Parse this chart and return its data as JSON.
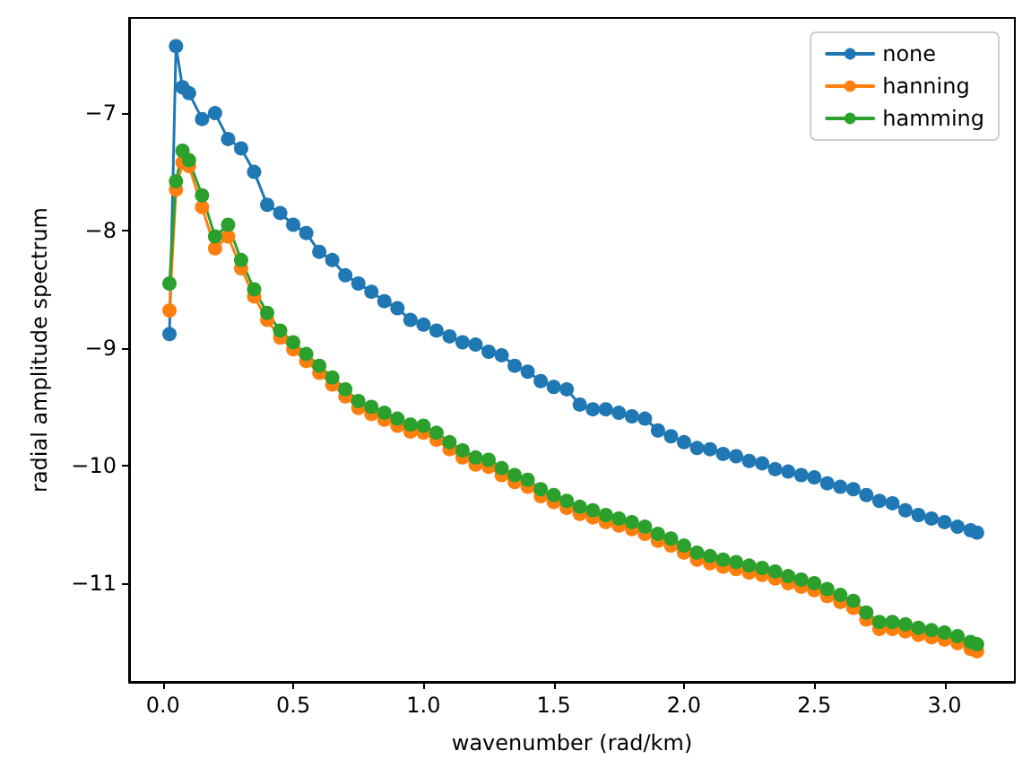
{
  "chart_data": {
    "type": "line",
    "xlabel": "wavenumber (rad/km)",
    "ylabel": "radial amplitude spectrum",
    "xlim": [
      -0.13,
      3.27
    ],
    "ylim": [
      -11.84,
      -6.19
    ],
    "xticks": [
      {
        "value": 0,
        "label": "0.0"
      },
      {
        "value": 0.5,
        "label": "0.5"
      },
      {
        "value": 1,
        "label": "1.0"
      },
      {
        "value": 1.5,
        "label": "1.5"
      },
      {
        "value": 2,
        "label": "2.0"
      },
      {
        "value": 2.5,
        "label": "2.5"
      },
      {
        "value": 3,
        "label": "3.0"
      }
    ],
    "yticks": [
      {
        "value": -11,
        "label": "−11"
      },
      {
        "value": -10,
        "label": "−10"
      },
      {
        "value": -9,
        "label": "−9"
      },
      {
        "value": -8,
        "label": "−8"
      },
      {
        "value": -7,
        "label": "−7"
      }
    ],
    "x": [
      0.025,
      0.05,
      0.075,
      0.1,
      0.15,
      0.2,
      0.25,
      0.3,
      0.35,
      0.4,
      0.45,
      0.5,
      0.55,
      0.6,
      0.65,
      0.7,
      0.75,
      0.8,
      0.85,
      0.9,
      0.95,
      1.0,
      1.05,
      1.1,
      1.15,
      1.2,
      1.25,
      1.3,
      1.35,
      1.4,
      1.45,
      1.5,
      1.55,
      1.6,
      1.65,
      1.7,
      1.75,
      1.8,
      1.85,
      1.9,
      1.95,
      2.0,
      2.05,
      2.1,
      2.15,
      2.2,
      2.25,
      2.3,
      2.35,
      2.4,
      2.45,
      2.5,
      2.55,
      2.6,
      2.65,
      2.7,
      2.75,
      2.8,
      2.85,
      2.9,
      2.95,
      3.0,
      3.05,
      3.1,
      3.125
    ],
    "series": [
      {
        "name": "none",
        "color": "#1f77b4",
        "values": [
          -8.88,
          -6.43,
          -6.78,
          -6.83,
          -7.05,
          -7.0,
          -7.22,
          -7.3,
          -7.5,
          -7.78,
          -7.85,
          -7.95,
          -8.02,
          -8.18,
          -8.25,
          -8.38,
          -8.45,
          -8.52,
          -8.6,
          -8.66,
          -8.76,
          -8.8,
          -8.85,
          -8.9,
          -8.95,
          -8.97,
          -9.03,
          -9.06,
          -9.15,
          -9.2,
          -9.28,
          -9.33,
          -9.35,
          -9.48,
          -9.52,
          -9.52,
          -9.55,
          -9.58,
          -9.6,
          -9.7,
          -9.75,
          -9.8,
          -9.85,
          -9.86,
          -9.9,
          -9.92,
          -9.96,
          -9.98,
          -10.03,
          -10.05,
          -10.08,
          -10.1,
          -10.15,
          -10.18,
          -10.2,
          -10.25,
          -10.3,
          -10.32,
          -10.38,
          -10.42,
          -10.45,
          -10.48,
          -10.52,
          -10.55,
          -10.57
        ]
      },
      {
        "name": "hanning",
        "color": "#ff7f0e",
        "values": [
          -8.68,
          -7.65,
          -7.42,
          -7.45,
          -7.8,
          -8.15,
          -8.05,
          -8.32,
          -8.56,
          -8.76,
          -8.91,
          -9.01,
          -9.11,
          -9.21,
          -9.31,
          -9.41,
          -9.51,
          -9.56,
          -9.61,
          -9.66,
          -9.71,
          -9.72,
          -9.78,
          -9.86,
          -9.93,
          -9.99,
          -10.01,
          -10.08,
          -10.14,
          -10.18,
          -10.26,
          -10.31,
          -10.36,
          -10.41,
          -10.44,
          -10.48,
          -10.51,
          -10.54,
          -10.58,
          -10.64,
          -10.68,
          -10.74,
          -10.8,
          -10.83,
          -10.86,
          -10.88,
          -10.91,
          -10.93,
          -10.96,
          -11.0,
          -11.03,
          -11.06,
          -11.11,
          -11.16,
          -11.21,
          -11.31,
          -11.39,
          -11.39,
          -11.41,
          -11.44,
          -11.46,
          -11.48,
          -11.51,
          -11.56,
          -11.58
        ]
      },
      {
        "name": "hamming",
        "color": "#2ca02c",
        "values": [
          -8.45,
          -7.58,
          -7.32,
          -7.4,
          -7.7,
          -8.05,
          -7.95,
          -8.25,
          -8.5,
          -8.7,
          -8.85,
          -8.95,
          -9.05,
          -9.15,
          -9.25,
          -9.35,
          -9.45,
          -9.5,
          -9.55,
          -9.6,
          -9.65,
          -9.66,
          -9.72,
          -9.8,
          -9.87,
          -9.93,
          -9.95,
          -10.02,
          -10.08,
          -10.12,
          -10.2,
          -10.25,
          -10.3,
          -10.35,
          -10.38,
          -10.42,
          -10.45,
          -10.48,
          -10.52,
          -10.58,
          -10.62,
          -10.68,
          -10.74,
          -10.77,
          -10.8,
          -10.82,
          -10.85,
          -10.87,
          -10.9,
          -10.94,
          -10.97,
          -11.0,
          -11.05,
          -11.1,
          -11.15,
          -11.25,
          -11.33,
          -11.33,
          -11.35,
          -11.38,
          -11.4,
          -11.42,
          -11.45,
          -11.5,
          -11.52
        ]
      }
    ],
    "marker": "circle",
    "line_style": "solid",
    "legend": "top right",
    "grid": false
  }
}
